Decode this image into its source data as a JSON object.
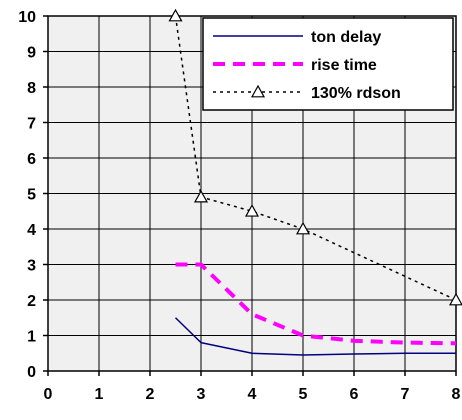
{
  "chart_data": {
    "type": "line",
    "title": "",
    "xlabel": "",
    "ylabel": "",
    "xlim": [
      0,
      8
    ],
    "ylim": [
      0,
      10
    ],
    "x_ticks": [
      "0",
      "1",
      "2",
      "3",
      "4",
      "5",
      "6",
      "7",
      "8"
    ],
    "y_ticks": [
      "0",
      "1",
      "2",
      "3",
      "4",
      "5",
      "6",
      "7",
      "8",
      "9",
      "10"
    ],
    "grid": true,
    "plot_background": "#f0f0f0",
    "legend_position": "top-right",
    "series": [
      {
        "name": "ton delay",
        "color": "#000080",
        "style": "solid",
        "marker": "none",
        "x": [
          2.5,
          3,
          4,
          5,
          6,
          7,
          8
        ],
        "y": [
          1.5,
          0.8,
          0.5,
          0.45,
          0.48,
          0.5,
          0.5
        ]
      },
      {
        "name": "rise time",
        "color": "#ff00ff",
        "style": "dashed",
        "marker": "none",
        "x": [
          2.5,
          3,
          4,
          5,
          6,
          7,
          8
        ],
        "y": [
          3,
          3,
          1.6,
          1.0,
          0.85,
          0.8,
          0.78
        ]
      },
      {
        "name": "130% rdson",
        "color": "#000000",
        "style": "dotted",
        "marker": "open-triangle",
        "x": [
          2.5,
          3,
          4,
          5,
          8
        ],
        "y": [
          10,
          4.9,
          4.5,
          4.0,
          2.0
        ]
      }
    ]
  }
}
